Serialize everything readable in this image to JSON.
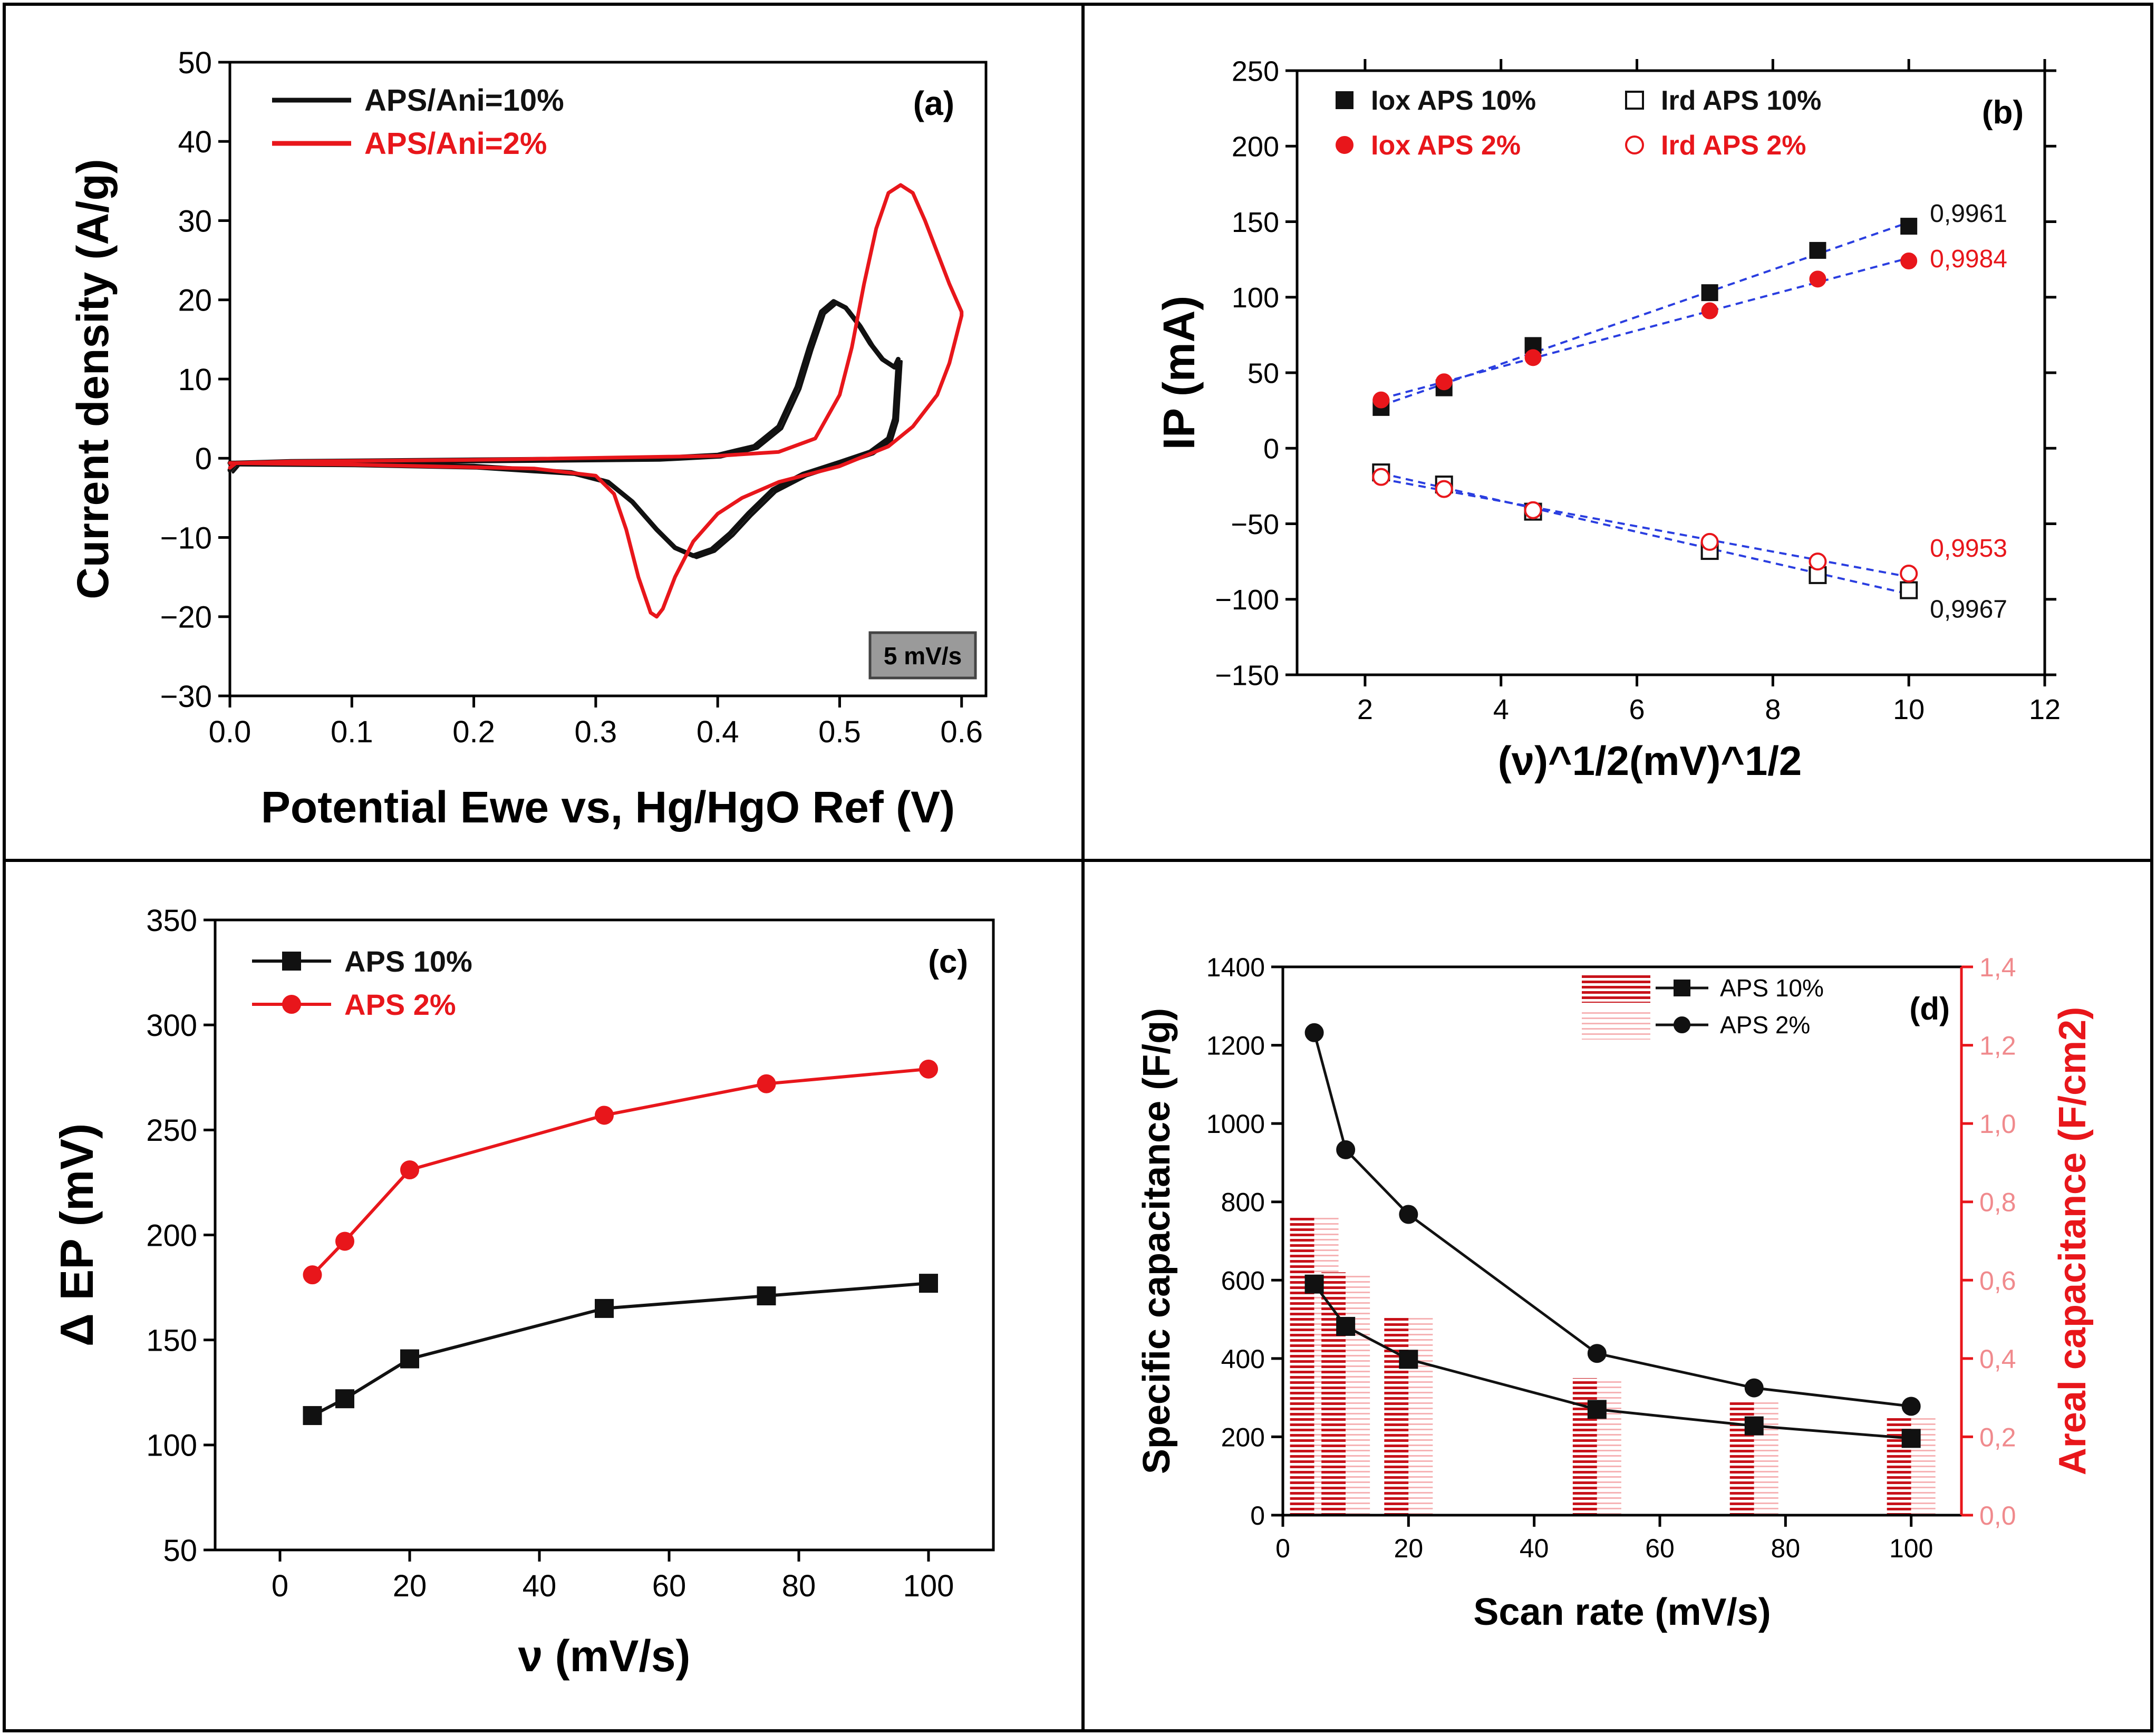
{
  "chart_data": [
    {
      "panel": "a",
      "type": "line",
      "label": "(a)",
      "xlabel": "Potential Ewe vs, Hg/HgO Ref (V)",
      "ylabel": "Current density (A/g)",
      "xlim": [
        0.0,
        0.62
      ],
      "ylim": [
        -30,
        50
      ],
      "xticks": [
        "0.0",
        "0.1",
        "0.2",
        "0.3",
        "0.4",
        "0.5",
        "0.6"
      ],
      "yticks": [
        "−30",
        "−20",
        "−10",
        "0",
        "10",
        "20",
        "30",
        "40",
        "50"
      ],
      "annotation": "5 mV/s",
      "legend_position": "top-left",
      "colors": {
        "APS/Ani=10%": "#111111",
        "APS/Ani=2%": "#e8161b"
      },
      "series": [
        {
          "name": "APS/Ani=10%",
          "loop_forward": [
            [
              0.0,
              -1.5
            ],
            [
              0.005,
              -0.6
            ],
            [
              0.05,
              -0.4
            ],
            [
              0.2,
              -0.2
            ],
            [
              0.35,
              0.0
            ],
            [
              0.4,
              0.4
            ],
            [
              0.43,
              1.5
            ],
            [
              0.45,
              4.0
            ],
            [
              0.465,
              9.0
            ],
            [
              0.475,
              14.0
            ],
            [
              0.485,
              18.5
            ],
            [
              0.495,
              19.8
            ],
            [
              0.505,
              19.0
            ],
            [
              0.515,
              17.0
            ],
            [
              0.525,
              14.5
            ],
            [
              0.535,
              12.5
            ],
            [
              0.545,
              11.5
            ]
          ],
          "loop_reverse": [
            [
              0.548,
              12.5
            ],
            [
              0.545,
              5.0
            ],
            [
              0.54,
              2.5
            ],
            [
              0.525,
              0.8
            ],
            [
              0.5,
              -0.5
            ],
            [
              0.47,
              -2.0
            ],
            [
              0.445,
              -4.0
            ],
            [
              0.425,
              -7.0
            ],
            [
              0.41,
              -9.5
            ],
            [
              0.395,
              -11.5
            ],
            [
              0.38,
              -12.3
            ],
            [
              0.365,
              -11.3
            ],
            [
              0.35,
              -9.0
            ],
            [
              0.33,
              -5.5
            ],
            [
              0.31,
              -3.0
            ],
            [
              0.28,
              -1.8
            ],
            [
              0.2,
              -1.0
            ],
            [
              0.1,
              -0.7
            ],
            [
              0.0,
              -0.6
            ]
          ]
        },
        {
          "name": "APS/Ani=2%",
          "loop_forward": [
            [
              0.0,
              -1.2
            ],
            [
              0.005,
              -0.6
            ],
            [
              0.05,
              -0.4
            ],
            [
              0.2,
              -0.2
            ],
            [
              0.4,
              0.3
            ],
            [
              0.45,
              0.8
            ],
            [
              0.48,
              2.5
            ],
            [
              0.5,
              8.0
            ],
            [
              0.51,
              14.0
            ],
            [
              0.52,
              22.0
            ],
            [
              0.53,
              29.0
            ],
            [
              0.54,
              33.5
            ],
            [
              0.55,
              34.5
            ],
            [
              0.56,
              33.5
            ],
            [
              0.57,
              30.0
            ],
            [
              0.58,
              26.0
            ],
            [
              0.59,
              22.0
            ],
            [
              0.6,
              18.5
            ]
          ],
          "loop_reverse": [
            [
              0.6,
              18.0
            ],
            [
              0.59,
              12.0
            ],
            [
              0.58,
              8.0
            ],
            [
              0.56,
              4.0
            ],
            [
              0.54,
              1.5
            ],
            [
              0.5,
              -1.0
            ],
            [
              0.45,
              -3.0
            ],
            [
              0.42,
              -5.0
            ],
            [
              0.4,
              -7.0
            ],
            [
              0.38,
              -10.5
            ],
            [
              0.365,
              -15.0
            ],
            [
              0.355,
              -19.0
            ],
            [
              0.35,
              -20.0
            ],
            [
              0.345,
              -19.5
            ],
            [
              0.335,
              -15.0
            ],
            [
              0.325,
              -9.0
            ],
            [
              0.315,
              -4.5
            ],
            [
              0.3,
              -2.2
            ],
            [
              0.25,
              -1.3
            ],
            [
              0.1,
              -0.8
            ],
            [
              0.0,
              -0.6
            ]
          ]
        }
      ]
    },
    {
      "panel": "b",
      "type": "scatter",
      "label": "(b)",
      "xlabel": "(ν)^1/2(mV)^1/2",
      "ylabel": "IP (mA)",
      "xlim": [
        0,
        12
      ],
      "ylim": [
        -150,
        250
      ],
      "xticks": [
        "2",
        "4",
        "6",
        "8",
        "10",
        "12"
      ],
      "yticks": [
        "−150",
        "−100",
        "−50",
        "0",
        "50",
        "100",
        "150",
        "200",
        "250"
      ],
      "x": [
        2.236,
        3.162,
        4.472,
        7.071,
        8.66,
        10.0
      ],
      "legend_position": "top",
      "colors": {
        "APS 10%": "#111111",
        "APS 2%": "#e8161b",
        "fit": "#2a3ee0"
      },
      "series": [
        {
          "name": "Iox APS 10%",
          "marker": "filled-square",
          "values": [
            27,
            40,
            68,
            103,
            131,
            147
          ],
          "r2": "0,9961"
        },
        {
          "name": "Ird APS 10%",
          "marker": "open-square",
          "values": [
            -16,
            -24,
            -42,
            -68,
            -84,
            -94
          ],
          "r2": "0,9967"
        },
        {
          "name": "Iox APS 2%",
          "marker": "filled-circle",
          "values": [
            32,
            44,
            60,
            91,
            112,
            124
          ],
          "r2": "0,9984"
        },
        {
          "name": "Ird APS 2%",
          "marker": "open-circle",
          "values": [
            -19,
            -27,
            -41,
            -62,
            -75,
            -83
          ],
          "r2": "0,9953"
        }
      ]
    },
    {
      "panel": "c",
      "type": "line",
      "label": "(c)",
      "xlabel": "ν  (mV/s)",
      "ylabel": "Δ EP (mV)",
      "xlim": [
        -10,
        110
      ],
      "ylim": [
        50,
        350
      ],
      "xticks": [
        "0",
        "20",
        "40",
        "60",
        "80",
        "100"
      ],
      "yticks": [
        "50",
        "100",
        "150",
        "200",
        "250",
        "300",
        "350"
      ],
      "x": [
        5,
        10,
        20,
        50,
        75,
        100
      ],
      "legend_position": "top-left",
      "colors": {
        "APS 10%": "#111111",
        "APS 2%": "#e8161b"
      },
      "series": [
        {
          "name": "APS 10%",
          "marker": "square",
          "values": [
            114,
            122,
            141,
            165,
            171,
            177
          ]
        },
        {
          "name": "APS 2%",
          "marker": "circle",
          "values": [
            181,
            197,
            231,
            257,
            272,
            279
          ]
        }
      ]
    },
    {
      "panel": "d",
      "type": "bar",
      "label": "(d)",
      "xlabel": "Scan rate (mV/s)",
      "ylabel": "Specific capacitance (F/g)",
      "y2label": "Areal capacitance (F/cm2)",
      "xlim": [
        0,
        108
      ],
      "ylim": [
        0,
        1400
      ],
      "y2lim": [
        0,
        1.4
      ],
      "xticks": [
        "0",
        "20",
        "40",
        "60",
        "80",
        "100"
      ],
      "yticks": [
        "0",
        "200",
        "400",
        "600",
        "800",
        "1000",
        "1200",
        "1400"
      ],
      "y2ticks": [
        "0,0",
        "0,2",
        "0,4",
        "0,6",
        "0,8",
        "1,0",
        "1,2",
        "1,4"
      ],
      "x": [
        5,
        10,
        20,
        50,
        75,
        100
      ],
      "legend_position": "top-right",
      "colors": {
        "lines": "#111111",
        "bars": "#c8121a",
        "bars_light": "#f3a3a6",
        "axis2": "#e8161b"
      },
      "series": [
        {
          "name": "APS 10%",
          "marker": "square",
          "values": [
            590,
            482,
            398,
            270,
            228,
            196
          ]
        },
        {
          "name": "APS 2%",
          "marker": "circle",
          "values": [
            1232,
            933,
            768,
            413,
            325,
            278
          ]
        }
      ],
      "areal_series": [
        {
          "name": "APS 10%",
          "values": [
            0.76,
            0.62,
            0.51,
            0.35,
            0.29,
            0.25
          ]
        },
        {
          "name": "APS 2%",
          "values": [
            0.76,
            0.62,
            0.51,
            0.35,
            0.29,
            0.25
          ]
        }
      ]
    }
  ]
}
